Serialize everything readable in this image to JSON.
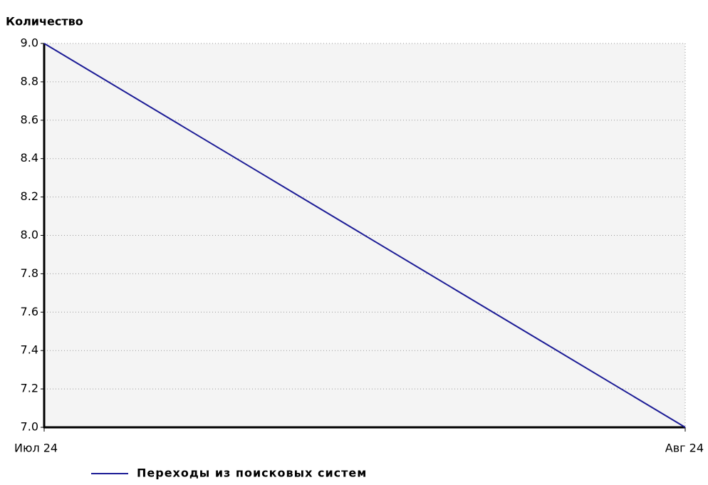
{
  "chart_data": {
    "type": "line",
    "y_axis_label": "Количество",
    "categories": [
      "Июл 24",
      "Авг 24"
    ],
    "series": [
      {
        "name": "Переходы из поисковых систем",
        "color": "#1c1c96",
        "values": [
          9,
          7
        ]
      }
    ],
    "ylim": [
      7,
      9
    ],
    "yticks": [
      {
        "value": 7,
        "label": "7.0"
      },
      7.2,
      7.4,
      7.6,
      7.8,
      {
        "value": 8,
        "label": "8.0"
      },
      8.2,
      8.4,
      8.6,
      8.8,
      {
        "value": 9,
        "label": "9.0"
      }
    ],
    "grid": true
  }
}
